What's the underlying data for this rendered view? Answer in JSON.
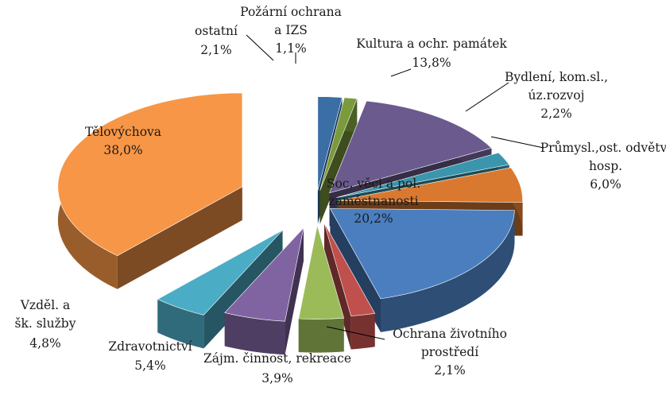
{
  "chart_data": {
    "type": "pie",
    "style": "3d-exploded",
    "title": "",
    "slices": [
      {
        "label": [
          "ostatní"
        ],
        "pct": "2,1%",
        "value": 2.1,
        "color": "#3a6ea5"
      },
      {
        "label": [
          "Požární ochrana",
          "a IZS"
        ],
        "pct": "1,1%",
        "value": 1.1,
        "color": "#7a9a3c"
      },
      {
        "label": [
          "Kultura a ochr. památek"
        ],
        "pct": "13,8%",
        "value": 13.8,
        "color": "#6b5a8e"
      },
      {
        "label": [
          "Bydlení, kom.sl.,",
          "úz.rozvoj"
        ],
        "pct": "2,2%",
        "value": 2.2,
        "color": "#3a95ad"
      },
      {
        "label": [
          "Průmysl.,ost. odvětví",
          "hosp."
        ],
        "pct": "6,0%",
        "value": 6.0,
        "color": "#d9792f"
      },
      {
        "label": [
          "Soc. věci a pol.",
          "zaměstnanosti"
        ],
        "pct": "20,2%",
        "value": 20.2,
        "color": "#4a7ebf"
      },
      {
        "label": [
          "Ochrana životního",
          "prostředí"
        ],
        "pct": "2,1%",
        "value": 2.1,
        "color": "#c0504d"
      },
      {
        "label": [
          "Zájm. činnost, rekreace"
        ],
        "pct": "3,9%",
        "value": 3.9,
        "color": "#9bbb59"
      },
      {
        "label": [
          "Zdravotnictví"
        ],
        "pct": "5,4%",
        "value": 5.4,
        "color": "#8064a2"
      },
      {
        "label": [
          "Vzděl. a",
          "šk. služby"
        ],
        "pct": "4,8%",
        "value": 4.8,
        "color": "#4bacc6"
      },
      {
        "label": [
          "Tělovýchova"
        ],
        "pct": "38,0%",
        "value": 38.0,
        "color": "#f79646"
      }
    ]
  }
}
